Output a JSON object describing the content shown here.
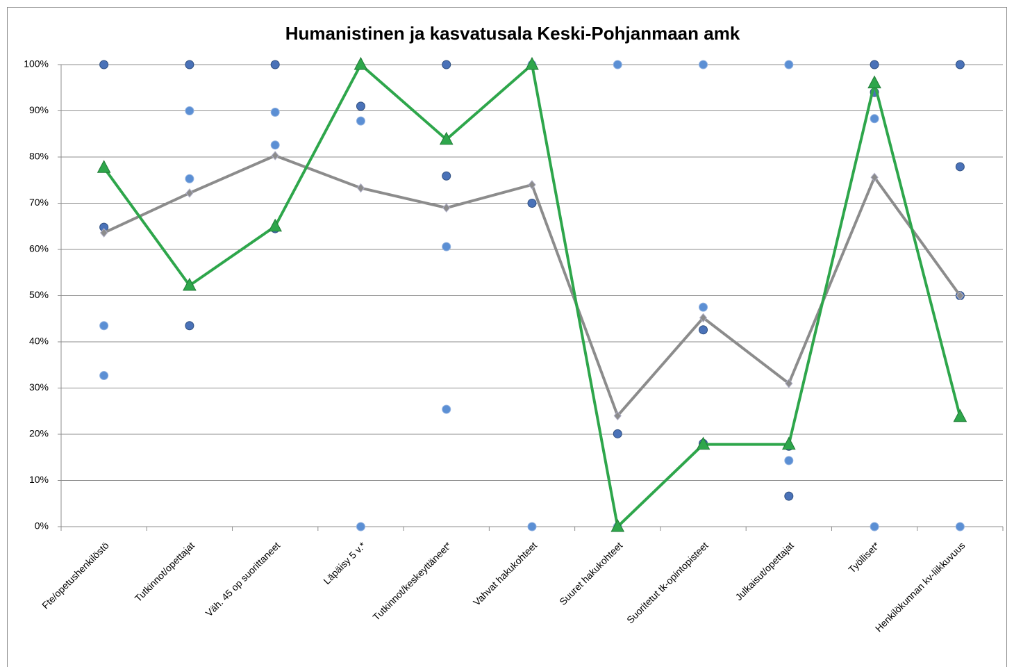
{
  "chart_data": {
    "type": "line",
    "title": "Humanistinen ja kasvatusala Keski-Pohjanmaan amk",
    "categories": [
      "Fte/opetushenkilöstö",
      "Tutkinnot/opettajat",
      "Väh. 45 op suorittaneet",
      "Läpäisy 5 v.*",
      "Tutkinnot/keskeyttäneet*",
      "Vahvat hakukohteet",
      "Suuret hakukohteet",
      "Suoritetut tk-opintopisteet",
      "Julkaisut/opettajat",
      "Työlliset*",
      "Henkilökunnan kv-liikkuvuus"
    ],
    "ylim": [
      0,
      100
    ],
    "yticks": [
      {
        "value": 0,
        "label": "0%"
      },
      {
        "value": 10,
        "label": "10%"
      },
      {
        "value": 20,
        "label": "20%"
      },
      {
        "value": 30,
        "label": "30%"
      },
      {
        "value": 40,
        "label": "40%"
      },
      {
        "value": 50,
        "label": "50%"
      },
      {
        "value": 60,
        "label": "60%"
      },
      {
        "value": 70,
        "label": "70%"
      },
      {
        "value": 80,
        "label": "80%"
      },
      {
        "value": 90,
        "label": "90%"
      },
      {
        "value": 100,
        "label": "100%"
      }
    ],
    "grid": true,
    "series": [
      {
        "color": "#4a72b8",
        "stroke": "#2f4f80",
        "marker": "circle",
        "line": false,
        "values": [
          100,
          100,
          100,
          null,
          100,
          null,
          null,
          null,
          null,
          100,
          100
        ]
      },
      {
        "color": "#4a72b8",
        "stroke": "#2f4f80",
        "marker": "circle",
        "line": false,
        "values": [
          64.8,
          43.5,
          64.5,
          91,
          75.9,
          70,
          20.1,
          42.6,
          17.4,
          94,
          77.9
        ]
      },
      {
        "color": "#4a72b8",
        "stroke": "#2f4f80",
        "marker": "circle",
        "line": false,
        "values": [
          null,
          null,
          null,
          null,
          null,
          null,
          null,
          18,
          6.6,
          null,
          50
        ]
      },
      {
        "color": "#5b8fd4",
        "stroke": "#8fb0e0",
        "marker": "circle",
        "line": false,
        "values": [
          43.5,
          90,
          89.7,
          87.8,
          60.6,
          100,
          100,
          100,
          100,
          88.3,
          null
        ]
      },
      {
        "color": "#5b8fd4",
        "stroke": "#8fb0e0",
        "marker": "circle",
        "line": false,
        "values": [
          32.7,
          75.3,
          82.6,
          0,
          25.4,
          0,
          0,
          47.5,
          14.3,
          0,
          0
        ]
      },
      {
        "color": "#8c8c8c",
        "stroke": "#b0b0c8",
        "marker": "diamond",
        "line": true,
        "values": [
          63.6,
          72.2,
          80.3,
          73.3,
          69,
          74,
          24,
          45.2,
          31,
          75.6,
          50
        ]
      },
      {
        "color": "#2ea64b",
        "stroke": "#1f7a36",
        "marker": "triangle",
        "line": true,
        "values": [
          77.7,
          52.2,
          65,
          100,
          83.8,
          100,
          0,
          17.8,
          17.8,
          96,
          23.8
        ]
      }
    ]
  }
}
